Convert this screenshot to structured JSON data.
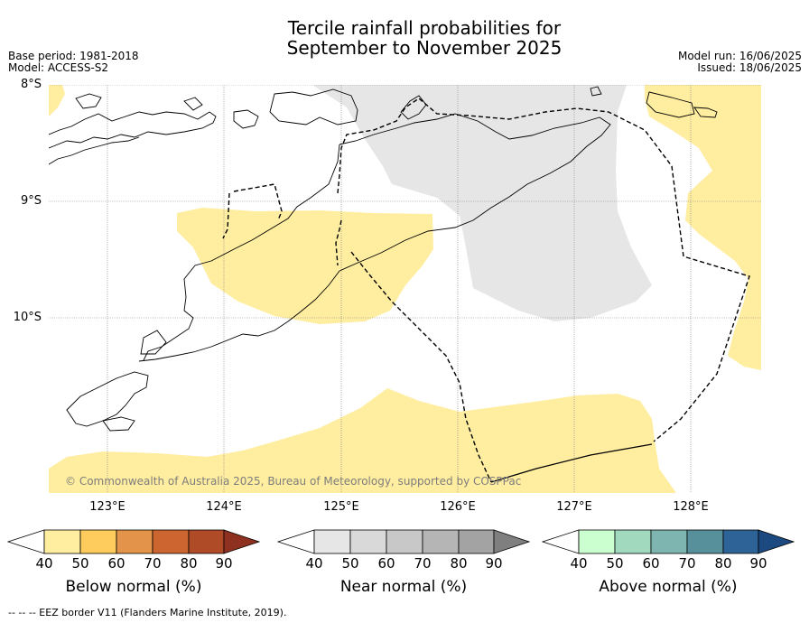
{
  "header": {
    "title_line1": "Tercile rainfall probabilities for",
    "title_line2": "September to November 2025",
    "base_period": "Base period: 1981-2018",
    "model": "Model: ACCESS-S2",
    "model_run": "Model run: 16/06/2025",
    "issued": "Issued: 18/06/2025"
  },
  "map": {
    "lat_labels": [
      "8°S",
      "9°S",
      "10°S"
    ],
    "lon_labels": [
      "123°E",
      "124°E",
      "125°E",
      "126°E",
      "127°E",
      "128°E"
    ],
    "copyright": "© Commonwealth of Australia 2025, Bureau of Meteorology, supported by COSPPac",
    "colors": {
      "below_normal_50": "#ffeda0",
      "near_normal_40": "#e6e6e6",
      "land_outline": "#000000",
      "eez": "#000000"
    }
  },
  "colorbars": [
    {
      "title": "Below normal (%)",
      "ticks": [
        "40",
        "50",
        "60",
        "70",
        "80",
        "90"
      ],
      "colors": [
        "#ffffff",
        "#ffeda0",
        "#fecc5c",
        "#e3944a",
        "#cd6530",
        "#b04b28",
        "#8e3120"
      ]
    },
    {
      "title": "Near normal (%)",
      "ticks": [
        "40",
        "50",
        "60",
        "70",
        "80",
        "90"
      ],
      "colors": [
        "#ffffff",
        "#e6e6e6",
        "#d9d9d9",
        "#c8c8c8",
        "#b5b5b5",
        "#a3a3a3",
        "#7f7f7f"
      ]
    },
    {
      "title": "Above normal (%)",
      "ticks": [
        "40",
        "50",
        "60",
        "70",
        "80",
        "90"
      ],
      "colors": [
        "#ffffff",
        "#ccffd0",
        "#a0d9bd",
        "#7fb5b0",
        "#578f9b",
        "#2e6397",
        "#1c4a80"
      ]
    }
  ],
  "footer": {
    "eez_legend": "-- -- -- EEZ border V11 (Flanders Marine Institute, 2019)."
  }
}
